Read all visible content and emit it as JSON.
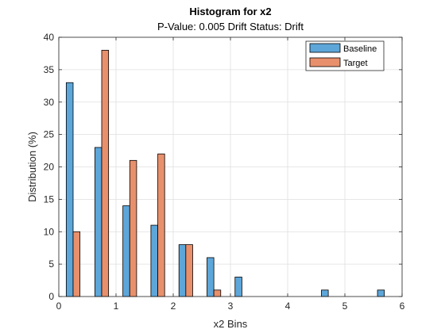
{
  "chart_data": {
    "type": "bar",
    "title": "Histogram for x2",
    "subtitle": "P-Value: 0.005 Drift Status: Drift",
    "xlabel": "x2 Bins",
    "ylabel": "Distribution (%)",
    "xlim": [
      0,
      6
    ],
    "ylim": [
      0,
      40
    ],
    "xticks": [
      0,
      1,
      2,
      3,
      4,
      5,
      6
    ],
    "yticks": [
      0,
      5,
      10,
      15,
      20,
      25,
      30,
      35,
      40
    ],
    "grid": true,
    "legend_position": "top-right",
    "series": [
      {
        "name": "Baseline",
        "color": "#5DA6D9",
        "bars": [
          {
            "x": 0.19,
            "value": 33
          },
          {
            "x": 0.69,
            "value": 23
          },
          {
            "x": 1.18,
            "value": 14
          },
          {
            "x": 1.67,
            "value": 11
          },
          {
            "x": 2.16,
            "value": 8
          },
          {
            "x": 2.65,
            "value": 6
          },
          {
            "x": 3.14,
            "value": 3
          },
          {
            "x": 4.65,
            "value": 1
          },
          {
            "x": 5.63,
            "value": 1
          }
        ]
      },
      {
        "name": "Target",
        "color": "#E8906C",
        "bars": [
          {
            "x": 0.31,
            "value": 10
          },
          {
            "x": 0.81,
            "value": 38
          },
          {
            "x": 1.3,
            "value": 21
          },
          {
            "x": 1.79,
            "value": 22
          },
          {
            "x": 2.28,
            "value": 8
          },
          {
            "x": 2.77,
            "value": 1
          }
        ]
      }
    ]
  }
}
